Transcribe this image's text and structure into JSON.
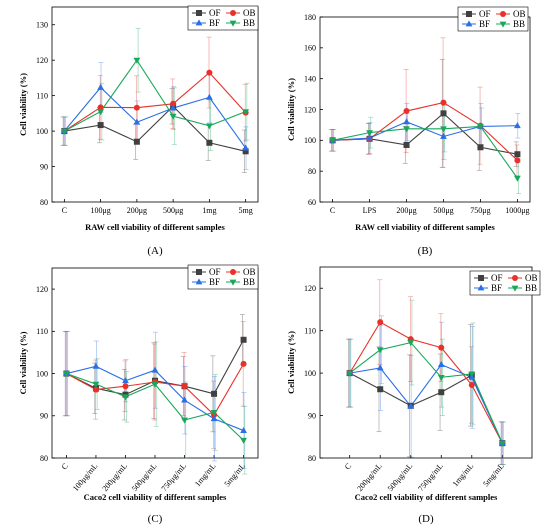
{
  "chart_data": [
    {
      "type": "line",
      "panel_label": "(A)",
      "xlabel": "RAW cell viability of different samples",
      "ylabel": "Cell viability (%)",
      "categories": [
        "C",
        "100μg",
        "200μg",
        "500μg",
        "1mg",
        "5mg"
      ],
      "ylim": [
        80,
        135
      ],
      "yticks": [
        80,
        90,
        100,
        110,
        120,
        130
      ],
      "legend_position": "top-right",
      "series": [
        {
          "name": "OF",
          "color": "#404040",
          "marker": "square",
          "values": [
            100,
            101.7,
            97,
            107,
            96.7,
            94.3
          ],
          "errors": [
            4,
            5,
            5,
            5,
            5,
            6
          ]
        },
        {
          "name": "OB",
          "color": "#e8312a",
          "marker": "circle",
          "values": [
            100,
            106.7,
            106.6,
            107.7,
            116.5,
            105.2
          ],
          "errors": [
            4,
            9,
            9,
            7,
            10,
            8
          ]
        },
        {
          "name": "BF",
          "color": "#2a6ee8",
          "marker": "triangle-up",
          "values": [
            100,
            112.3,
            102.5,
            106.5,
            109.5,
            95.2
          ],
          "errors": [
            4,
            7,
            6,
            6,
            7,
            6
          ]
        },
        {
          "name": "BB",
          "color": "#19a85a",
          "marker": "triangle-down",
          "values": [
            100,
            105.5,
            120,
            104.2,
            101.5,
            105.5
          ],
          "errors": [
            4,
            8,
            9,
            8,
            7,
            8
          ]
        }
      ]
    },
    {
      "type": "line",
      "panel_label": "(B)",
      "xlabel": "RAW cell viability of different samples",
      "ylabel": "Cell viability (%)",
      "categories": [
        "C",
        "LPS",
        "200μg",
        "500μg",
        "750μg",
        "1000μg"
      ],
      "ylim": [
        60,
        180
      ],
      "yticks": [
        60,
        80,
        100,
        120,
        140,
        160,
        180
      ],
      "legend_position": "top-right",
      "series": [
        {
          "name": "OF",
          "color": "#404040",
          "marker": "square",
          "values": [
            100,
            101,
            97,
            117.5,
            95.5,
            91
          ],
          "errors": [
            7,
            10,
            12,
            35,
            15,
            8
          ]
        },
        {
          "name": "OB",
          "color": "#e8312a",
          "marker": "circle",
          "values": [
            100,
            101,
            119,
            124.5,
            109.5,
            87
          ],
          "errors": [
            7,
            10,
            27,
            42,
            25,
            10
          ]
        },
        {
          "name": "BF",
          "color": "#2a6ee8",
          "marker": "triangle-up",
          "values": [
            100,
            101.5,
            112,
            102.5,
            109,
            109.5
          ],
          "errors": [
            7,
            10,
            12,
            15,
            15,
            8
          ]
        },
        {
          "name": "BB",
          "color": "#19a85a",
          "marker": "triangle-down",
          "values": [
            100,
            105,
            107.5,
            107.5,
            109,
            75.5
          ],
          "errors": [
            7,
            10,
            12,
            15,
            12,
            10
          ]
        }
      ]
    },
    {
      "type": "line",
      "panel_label": "(C)",
      "xlabel": "Caco2 cell viability of different samples",
      "ylabel": "Cell viability (%)",
      "categories": [
        "C",
        "100μg/mL",
        "200μg/mL",
        "500μg/mL",
        "750μg/mL",
        "1mg/mL",
        "5mg/mL"
      ],
      "ylim": [
        80,
        125
      ],
      "yticks": [
        80,
        90,
        100,
        110,
        120
      ],
      "legend_position": "top-right",
      "series": [
        {
          "name": "OF",
          "color": "#404040",
          "marker": "square",
          "values": [
            100,
            96.5,
            95,
            98.3,
            97,
            95.2,
            108
          ],
          "errors": [
            10,
            6,
            6,
            9,
            7,
            9,
            6
          ]
        },
        {
          "name": "OB",
          "color": "#e8312a",
          "marker": "circle",
          "values": [
            100,
            96.2,
            97,
            98,
            97,
            90.2,
            102.3
          ],
          "errors": [
            10,
            7,
            6,
            9,
            8,
            8,
            10
          ]
        },
        {
          "name": "BF",
          "color": "#2a6ee8",
          "marker": "triangle-up",
          "values": [
            100,
            101.7,
            98.3,
            100.8,
            93.7,
            89.3,
            86.5
          ],
          "errors": [
            10,
            6,
            5,
            9,
            8,
            10,
            9
          ]
        },
        {
          "name": "BB",
          "color": "#19a85a",
          "marker": "triangle-down",
          "values": [
            100,
            97.5,
            94.5,
            97.5,
            89,
            90.8,
            84.2
          ],
          "errors": [
            10,
            6,
            6,
            10,
            9,
            9,
            8
          ]
        }
      ]
    },
    {
      "type": "line",
      "panel_label": "(D)",
      "xlabel": "Caco2 cell viability of different samples",
      "ylabel": "Cell viability (%)",
      "categories": [
        "C",
        "200μg/mL",
        "500μg/mL",
        "750μg/mL",
        "1mg/mL",
        "5mg/mL"
      ],
      "ylim": [
        80,
        125
      ],
      "yticks": [
        80,
        90,
        100,
        110,
        120
      ],
      "legend_position": "top-right",
      "series": [
        {
          "name": "OF",
          "color": "#404040",
          "marker": "square",
          "values": [
            100,
            96.2,
            92.3,
            95.5,
            99.5,
            83.5
          ],
          "errors": [
            8,
            10,
            12,
            9,
            12,
            5
          ]
        },
        {
          "name": "OB",
          "color": "#e8312a",
          "marker": "circle",
          "values": [
            100,
            112,
            108,
            106,
            97.2,
            83.5
          ],
          "errors": [
            8,
            10,
            10,
            8,
            9,
            5
          ]
        },
        {
          "name": "BF",
          "color": "#2a6ee8",
          "marker": "triangle-up",
          "values": [
            100,
            101.2,
            92.2,
            102,
            99,
            83.5
          ],
          "errors": [
            8,
            10,
            12,
            10,
            12,
            5
          ]
        },
        {
          "name": "BB",
          "color": "#19a85a",
          "marker": "triangle-down",
          "values": [
            100,
            105.5,
            107.2,
            99,
            99.8,
            83.5
          ],
          "errors": [
            8,
            8,
            10,
            9,
            12,
            5
          ]
        }
      ]
    }
  ]
}
